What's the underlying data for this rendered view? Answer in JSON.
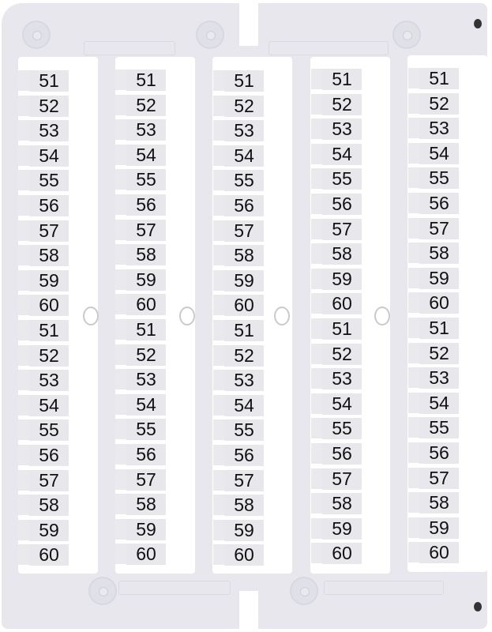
{
  "product": "terminal marker card",
  "colors": {
    "frame": "#e7e7ed",
    "strip": "#ffffff",
    "label": "#e8e8ec",
    "text": "#111111"
  },
  "columns": [
    {
      "labels": [
        "51",
        "52",
        "53",
        "54",
        "55",
        "56",
        "57",
        "58",
        "59",
        "60",
        "51",
        "52",
        "53",
        "54",
        "55",
        "56",
        "57",
        "58",
        "59",
        "60"
      ]
    },
    {
      "labels": [
        "51",
        "52",
        "53",
        "54",
        "55",
        "56",
        "57",
        "58",
        "59",
        "60",
        "51",
        "52",
        "53",
        "54",
        "55",
        "56",
        "57",
        "58",
        "59",
        "60"
      ]
    },
    {
      "labels": [
        "51",
        "52",
        "53",
        "54",
        "55",
        "56",
        "57",
        "58",
        "59",
        "60",
        "51",
        "52",
        "53",
        "54",
        "55",
        "56",
        "57",
        "58",
        "59",
        "60"
      ]
    },
    {
      "labels": [
        "51",
        "52",
        "53",
        "54",
        "55",
        "56",
        "57",
        "58",
        "59",
        "60",
        "51",
        "52",
        "53",
        "54",
        "55",
        "56",
        "57",
        "58",
        "59",
        "60"
      ]
    },
    {
      "labels": [
        "51",
        "52",
        "53",
        "54",
        "55",
        "56",
        "57",
        "58",
        "59",
        "60",
        "51",
        "52",
        "53",
        "54",
        "55",
        "56",
        "57",
        "58",
        "59",
        "60"
      ]
    }
  ]
}
